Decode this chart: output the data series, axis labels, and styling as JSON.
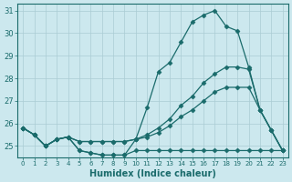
{
  "xlabel": "Humidex (Indice chaleur)",
  "bg_color": "#cce8ee",
  "grid_color": "#aaccd4",
  "line_color": "#1a6b6b",
  "hours": [
    0,
    1,
    2,
    3,
    4,
    5,
    6,
    7,
    8,
    9,
    10,
    11,
    12,
    13,
    14,
    15,
    16,
    17,
    18,
    19,
    20,
    21,
    22,
    23
  ],
  "line1": [
    25.8,
    25.5,
    25.0,
    25.3,
    25.4,
    24.8,
    24.7,
    24.6,
    24.6,
    24.6,
    25.3,
    26.7,
    28.3,
    28.7,
    29.6,
    30.5,
    30.8,
    31.0,
    30.3,
    30.1,
    28.5,
    26.6,
    25.7,
    24.8
  ],
  "line2": [
    25.8,
    25.5,
    25.0,
    25.3,
    25.4,
    25.2,
    25.2,
    25.2,
    25.2,
    25.2,
    25.3,
    25.5,
    25.8,
    26.2,
    26.8,
    27.2,
    27.8,
    28.2,
    28.5,
    28.5,
    28.4,
    26.6,
    25.7,
    24.8
  ],
  "line3": [
    25.8,
    25.5,
    25.0,
    25.3,
    25.4,
    25.2,
    25.2,
    25.2,
    25.2,
    25.2,
    25.3,
    25.4,
    25.6,
    25.9,
    26.3,
    26.6,
    27.0,
    27.4,
    27.6,
    27.6,
    27.6,
    26.6,
    25.7,
    24.8
  ],
  "line4": [
    25.8,
    25.5,
    25.0,
    25.3,
    25.4,
    24.8,
    24.7,
    24.6,
    24.6,
    24.6,
    24.8,
    24.8,
    24.8,
    24.8,
    24.8,
    24.8,
    24.8,
    24.8,
    24.8,
    24.8,
    24.8,
    24.8,
    24.8,
    24.8
  ],
  "ylim": [
    24.5,
    31.3
  ],
  "yticks": [
    25,
    26,
    27,
    28,
    29,
    30,
    31
  ]
}
